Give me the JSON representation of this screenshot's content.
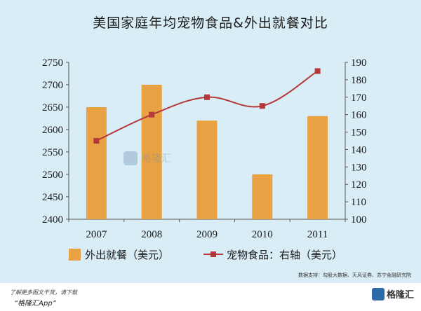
{
  "title": "美国家庭年均宠物食品&外出就餐对比",
  "source": "数据支持：勾股大数据、天风证券、苏宁金融研究院",
  "watermark": "格隆汇",
  "footer": {
    "line1": "了解更多图文干货，请下载",
    "line2": "“格隆汇App”",
    "logo": "格隆汇"
  },
  "colors": {
    "bar": "#e8a243",
    "line": "#b5383a",
    "panel": "#d9edf6"
  },
  "chart_data": {
    "type": "bar+line",
    "categories": [
      "2007",
      "2008",
      "2009",
      "2010",
      "2011"
    ],
    "left_axis": {
      "min": 2400,
      "max": 2750,
      "ticks": [
        2400,
        2450,
        2500,
        2550,
        2600,
        2650,
        2700,
        2750
      ]
    },
    "right_axis": {
      "min": 100,
      "max": 190,
      "ticks": [
        100,
        110,
        120,
        130,
        140,
        150,
        160,
        170,
        180,
        190
      ]
    },
    "series": [
      {
        "name": "外出就餐（美元）",
        "type": "bar",
        "axis": "left",
        "values": [
          2650,
          2700,
          2620,
          2500,
          2630
        ]
      },
      {
        "name": "宠物食品：右轴（美元）",
        "type": "line",
        "axis": "right",
        "values": [
          145,
          160,
          170,
          165,
          185
        ]
      }
    ],
    "legend": "bottom"
  }
}
